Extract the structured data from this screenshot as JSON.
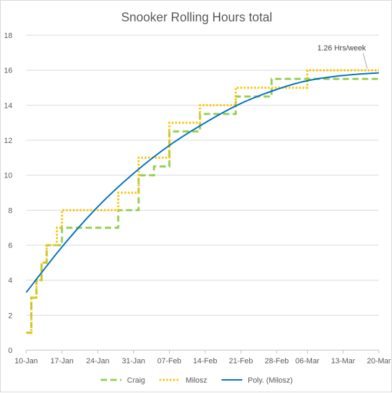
{
  "chart_data": {
    "type": "line",
    "title": "Snooker Rolling Hours total",
    "xlabel": "",
    "ylabel": "",
    "ylim": [
      0,
      18
    ],
    "y_ticks": [
      0,
      2,
      4,
      6,
      8,
      10,
      12,
      14,
      16,
      18
    ],
    "x_start": "10-Jan",
    "x_end": "20-Mar",
    "x_tick_labels": [
      "10-Jan",
      "17-Jan",
      "24-Jan",
      "31-Jan",
      "07-Feb",
      "14-Feb",
      "21-Feb",
      "28-Feb",
      "06-Mar",
      "13-Mar",
      "20-Mar"
    ],
    "grid": true,
    "legend": "bottom",
    "series": [
      {
        "name": "Craig",
        "style": "dashed",
        "color": "#92d050",
        "points": [
          [
            "10-Jan",
            1
          ],
          [
            "11-Jan",
            1
          ],
          [
            "11-Jan",
            3
          ],
          [
            "12-Jan",
            3
          ],
          [
            "12-Jan",
            4
          ],
          [
            "13-Jan",
            4
          ],
          [
            "13-Jan",
            5
          ],
          [
            "14-Jan",
            5
          ],
          [
            "14-Jan",
            6
          ],
          [
            "15-Jan",
            6
          ],
          [
            "16-Jan",
            6
          ],
          [
            "17-Jan",
            6
          ],
          [
            "17-Jan",
            7
          ],
          [
            "28-Jan",
            7
          ],
          [
            "28-Jan",
            8
          ],
          [
            "01-Feb",
            8
          ],
          [
            "01-Feb",
            10
          ],
          [
            "04-Feb",
            10
          ],
          [
            "04-Feb",
            10.5
          ],
          [
            "07-Feb",
            10.5
          ],
          [
            "07-Feb",
            12.5
          ],
          [
            "13-Feb",
            12.5
          ],
          [
            "13-Feb",
            13.5
          ],
          [
            "20-Feb",
            13.5
          ],
          [
            "20-Feb",
            14.5
          ],
          [
            "27-Feb",
            14.5
          ],
          [
            "27-Feb",
            15.5
          ],
          [
            "20-Mar",
            15.5
          ]
        ]
      },
      {
        "name": "Milosz",
        "style": "dotted",
        "color": "#ffc000",
        "points": [
          [
            "10-Jan",
            1
          ],
          [
            "11-Jan",
            1
          ],
          [
            "11-Jan",
            3
          ],
          [
            "12-Jan",
            3
          ],
          [
            "12-Jan",
            4
          ],
          [
            "13-Jan",
            4
          ],
          [
            "13-Jan",
            5
          ],
          [
            "14-Jan",
            5
          ],
          [
            "14-Jan",
            6
          ],
          [
            "15-Jan",
            6
          ],
          [
            "16-Jan",
            6
          ],
          [
            "16-Jan",
            7
          ],
          [
            "17-Jan",
            7
          ],
          [
            "17-Jan",
            8
          ],
          [
            "28-Jan",
            8
          ],
          [
            "28-Jan",
            9
          ],
          [
            "01-Feb",
            9
          ],
          [
            "01-Feb",
            11
          ],
          [
            "07-Feb",
            11
          ],
          [
            "07-Feb",
            13
          ],
          [
            "13-Feb",
            13
          ],
          [
            "13-Feb",
            14
          ],
          [
            "20-Feb",
            14
          ],
          [
            "20-Feb",
            15
          ],
          [
            "06-Mar",
            15
          ],
          [
            "06-Mar",
            16
          ],
          [
            "20-Mar",
            16
          ]
        ]
      },
      {
        "name": "Poly. (Milosz)",
        "style": "solid",
        "color": "#0070c0",
        "points": [
          [
            "10-Jan",
            3.3
          ],
          [
            "17-Jan",
            5.9
          ],
          [
            "24-Jan",
            8.2
          ],
          [
            "31-Jan",
            10.1
          ],
          [
            "07-Feb",
            11.7
          ],
          [
            "14-Feb",
            13.0
          ],
          [
            "21-Feb",
            14.1
          ],
          [
            "28-Feb",
            14.9
          ],
          [
            "06-Mar",
            15.4
          ],
          [
            "13-Mar",
            15.7
          ],
          [
            "20-Mar",
            15.85
          ]
        ]
      }
    ],
    "annotations": [
      {
        "text": "1.26 Hrs/week",
        "x": "18-Mar",
        "y": 16
      }
    ]
  }
}
